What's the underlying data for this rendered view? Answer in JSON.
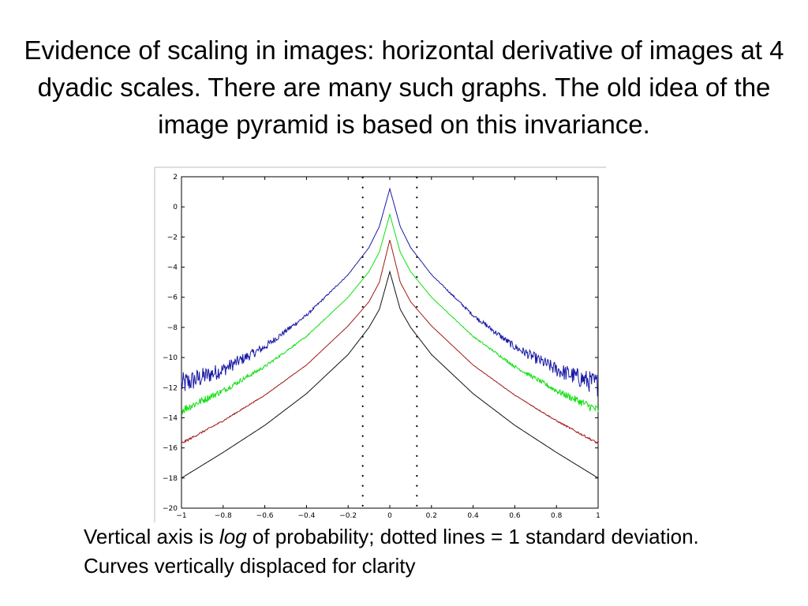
{
  "slide": {
    "title": "Evidence of scaling in images: horizontal derivative of images at 4 dyadic scales. There are many such graphs. The old idea of the image pyramid is based on this invariance.",
    "caption_part1": "Vertical axis is ",
    "caption_italic": "log",
    "caption_part2": " of probability; dotted lines = 1 standard deviation. Curves vertically displaced for clarity"
  },
  "chart_data": {
    "type": "line",
    "title": "",
    "xlabel": "",
    "ylabel": "",
    "xlim": [
      -1,
      1
    ],
    "ylim": [
      -20,
      2
    ],
    "grid": false,
    "xticks": [
      -1,
      -0.8,
      -0.6,
      -0.4,
      -0.2,
      0,
      0.2,
      0.4,
      0.6,
      0.8,
      1
    ],
    "xtick_labels": [
      "−1",
      "−0.8",
      "−0.6",
      "−0.4",
      "−0.2",
      "0",
      "0.2",
      "0.4",
      "0.6",
      "0.8",
      "1"
    ],
    "yticks": [
      2,
      0,
      -2,
      -4,
      -6,
      -8,
      -10,
      -12,
      -14,
      -16,
      -18,
      -20
    ],
    "ytick_labels": [
      "2",
      "0",
      "−2",
      "−4",
      "−6",
      "−8",
      "−10",
      "−12",
      "−14",
      "−16",
      "−18",
      "−20"
    ],
    "std_dev_lines": [
      -0.13,
      0.13
    ],
    "series": [
      {
        "color": "#1a1aa6",
        "noise": 0.5,
        "x": [
          -1,
          -0.8,
          -0.6,
          -0.4,
          -0.2,
          -0.1,
          -0.05,
          0,
          0.05,
          0.1,
          0.2,
          0.4,
          0.6,
          0.8,
          1
        ],
        "y": [
          -11.8,
          -10.8,
          -9.3,
          -7.2,
          -4.5,
          -2.7,
          -1.3,
          1.2,
          -1.3,
          -2.7,
          -4.5,
          -7.2,
          -9.3,
          -10.8,
          -11.8
        ]
      },
      {
        "color": "#10e010",
        "noise": 0.2,
        "x": [
          -1,
          -0.8,
          -0.6,
          -0.4,
          -0.2,
          -0.1,
          -0.05,
          0,
          0.05,
          0.1,
          0.2,
          0.4,
          0.6,
          0.8,
          1
        ],
        "y": [
          -13.5,
          -12.2,
          -10.6,
          -8.6,
          -6.0,
          -4.3,
          -3.0,
          -0.5,
          -3.0,
          -4.3,
          -6.0,
          -8.6,
          -10.6,
          -12.2,
          -13.5
        ]
      },
      {
        "color": "#a01818",
        "noise": 0.05,
        "x": [
          -1,
          -0.8,
          -0.6,
          -0.4,
          -0.2,
          -0.1,
          -0.05,
          0,
          0.05,
          0.1,
          0.2,
          0.4,
          0.6,
          0.8,
          1
        ],
        "y": [
          -15.7,
          -14.2,
          -12.5,
          -10.5,
          -7.9,
          -6.3,
          -5.0,
          -2.2,
          -5.0,
          -6.3,
          -7.9,
          -10.5,
          -12.5,
          -14.2,
          -15.7
        ]
      },
      {
        "color": "#111111",
        "noise": 0.0,
        "x": [
          -1,
          -0.8,
          -0.6,
          -0.4,
          -0.2,
          -0.1,
          -0.05,
          0,
          0.05,
          0.1,
          0.2,
          0.4,
          0.6,
          0.8,
          1
        ],
        "y": [
          -18.0,
          -16.3,
          -14.5,
          -12.4,
          -9.8,
          -8.0,
          -6.8,
          -4.3,
          -6.8,
          -8.0,
          -9.8,
          -12.4,
          -14.5,
          -16.3,
          -18.0
        ]
      }
    ]
  }
}
